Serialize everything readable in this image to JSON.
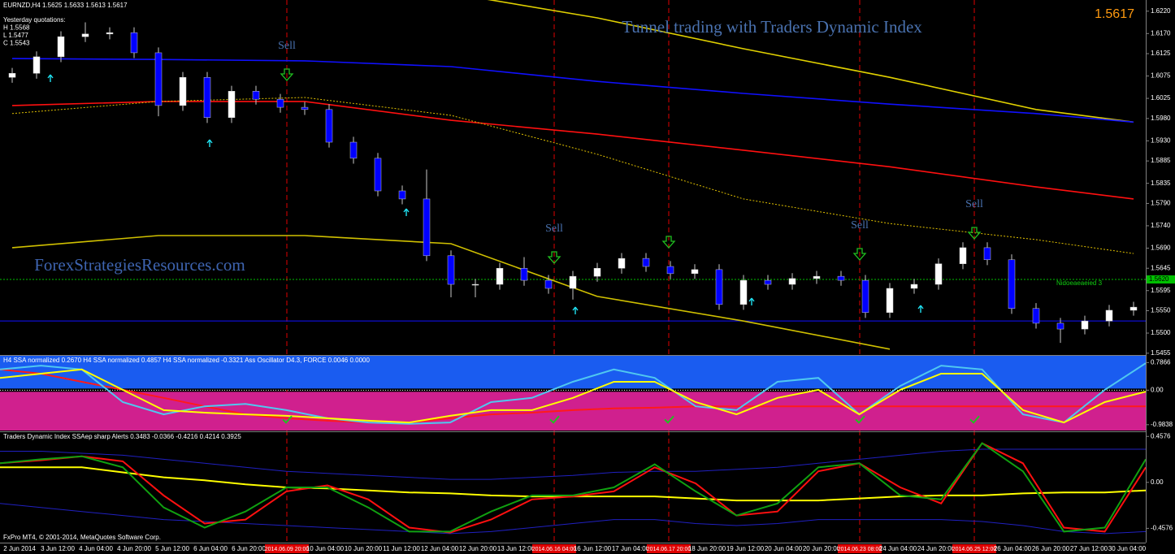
{
  "chart_data": [
    {
      "type": "candlestick",
      "symbol_line": "EURNZD,H4  1.5625 1.5633 1.5613 1.5617",
      "yesterday": [
        "Yesterday quotations:",
        "H 1.5568",
        "L 1.5477",
        "C 1.5543"
      ],
      "title": "Tunnel trading  with Traders Dynamic Index",
      "last_price": "1.5617",
      "watermark": "ForexStrategiesResources.com",
      "side_note": "Nidoeaeaeied 3",
      "bull_color": "#ffffff",
      "bear_color": "#0000ff",
      "open": [
        1.6072,
        1.6081,
        1.6118,
        1.6163,
        1.6169,
        1.6172,
        1.6127,
        1.6009,
        1.6072,
        1.5982,
        1.6041,
        1.6023,
        1.6005,
        1.6,
        1.5927,
        1.5891,
        1.5818,
        1.58,
        1.5673,
        1.5609,
        1.5609,
        1.5645,
        1.5618,
        1.56,
        1.5627,
        1.5645,
        1.5667,
        1.5649,
        1.5633,
        1.5642,
        1.5564,
        1.5618,
        1.5609,
        1.5622,
        1.5627,
        1.5618,
        1.5546,
        1.56,
        1.5609,
        1.5655,
        1.5691,
        1.5664,
        1.5555,
        1.5522,
        1.5509,
        1.5527,
        1.5551
      ],
      "high": [
        1.6093,
        1.613,
        1.6175,
        1.6195,
        1.6184,
        1.6184,
        1.6139,
        1.6084,
        1.6084,
        1.6053,
        1.6053,
        1.6035,
        1.6017,
        1.6012,
        1.5939,
        1.5903,
        1.583,
        1.5866,
        1.5685,
        1.5621,
        1.5657,
        1.567,
        1.563,
        1.5639,
        1.5657,
        1.5679,
        1.5679,
        1.5661,
        1.5654,
        1.5654,
        1.563,
        1.563,
        1.5634,
        1.5639,
        1.5639,
        1.563,
        1.5612,
        1.5621,
        1.5667,
        1.5703,
        1.5703,
        1.5676,
        1.5567,
        1.5534,
        1.5539,
        1.5563,
        1.557
      ],
      "low": [
        1.606,
        1.6069,
        1.6106,
        1.6151,
        1.6157,
        1.6115,
        1.5985,
        1.5997,
        1.597,
        1.597,
        1.6011,
        1.5993,
        1.5988,
        1.5915,
        1.5879,
        1.5806,
        1.5788,
        1.5661,
        1.558,
        1.558,
        1.5597,
        1.5606,
        1.5588,
        1.5575,
        1.5615,
        1.5633,
        1.5637,
        1.5621,
        1.5621,
        1.5552,
        1.5552,
        1.5597,
        1.5597,
        1.561,
        1.5606,
        1.5534,
        1.5534,
        1.5588,
        1.5597,
        1.5643,
        1.5652,
        1.5543,
        1.551,
        1.5478,
        1.5497,
        1.5515,
        1.5539
      ],
      "close": [
        1.6081,
        1.6118,
        1.6163,
        1.6169,
        1.6172,
        1.6127,
        1.6009,
        1.6072,
        1.5982,
        1.6041,
        1.6023,
        1.6005,
        1.6,
        1.5927,
        1.5891,
        1.5818,
        1.58,
        1.5673,
        1.5609,
        1.5609,
        1.5645,
        1.5618,
        1.56,
        1.5627,
        1.5645,
        1.5667,
        1.5649,
        1.5633,
        1.5642,
        1.5564,
        1.5618,
        1.5609,
        1.5622,
        1.5627,
        1.5618,
        1.5546,
        1.56,
        1.5609,
        1.5655,
        1.5691,
        1.5664,
        1.5555,
        1.5522,
        1.5509,
        1.5527,
        1.5551,
        1.5558
      ],
      "lines": [
        {
          "color": "#e0d000",
          "x": [
            0,
            6,
            12,
            18,
            24,
            30,
            36,
            42,
            46
          ],
          "values": [
            null,
            null,
            null,
            1.626,
            1.6205,
            1.6136,
            1.6072,
            1.6,
            1.5972
          ]
        },
        {
          "color": "#1010ff",
          "x": [
            0,
            6,
            12,
            18,
            24,
            30,
            36,
            42,
            46
          ],
          "values": [
            1.6114,
            1.6112,
            1.6109,
            1.6096,
            1.6063,
            1.6036,
            1.6012,
            1.5991,
            1.5972
          ]
        },
        {
          "color": "#ff1010",
          "x": [
            0,
            6,
            12,
            18,
            24,
            30,
            36,
            42,
            46
          ],
          "values": [
            1.6009,
            1.6018,
            1.6018,
            1.5976,
            1.5945,
            1.5909,
            1.5872,
            1.5827,
            1.58
          ]
        },
        {
          "color": "#e0c000",
          "style": "dotted",
          "x": [
            0,
            6,
            12,
            18,
            24,
            30,
            36,
            42,
            46
          ],
          "values": [
            1.5991,
            1.6018,
            1.6027,
            1.5987,
            1.59,
            1.58,
            1.5745,
            1.5709,
            1.5678
          ]
        },
        {
          "color": "#d0c000",
          "x": [
            0,
            6,
            12,
            18,
            24,
            30,
            36,
            42,
            46
          ],
          "values": [
            1.5691,
            1.5718,
            1.5718,
            1.57,
            1.5582,
            1.5527,
            1.5464,
            null,
            null
          ]
        }
      ],
      "hlines": [
        {
          "value": 1.562,
          "label": "1.5620",
          "color": "#00c000",
          "style": "dotted"
        },
        {
          "value": 1.5527,
          "color": "#1010ff"
        }
      ],
      "ylim": [
        1.5451,
        1.6245
      ],
      "yticks": [
        {
          "value": 1.622,
          "label": "1.6220"
        },
        {
          "value": 1.617,
          "label": "1.6170"
        },
        1.6125,
        1.6075,
        1.6025,
        {
          "value": 1.598,
          "label": "1.5980"
        },
        {
          "value": 1.593,
          "label": "1.5930"
        },
        1.5885,
        1.5835,
        {
          "value": 1.579,
          "label": "1.5790"
        },
        {
          "value": 1.574,
          "label": "1.5740"
        },
        {
          "value": 1.569,
          "label": "1.5690"
        },
        1.5645,
        1.5595,
        {
          "value": 1.555,
          "label": "1.5550"
        },
        {
          "value": 1.55,
          "label": "1.5500"
        },
        1.5455
      ],
      "time_labels": [
        "2 Jun 2014",
        "3 Jun 12:00",
        "4 Jun 04:00",
        "4 Jun 20:00",
        "5 Jun 12:00",
        "6 Jun 04:00",
        "6 Jun 20:00",
        {
          "label": "2014.06.09 20:00",
          "highlight": true,
          "signal": "Sell"
        },
        "10 Jun 04:00",
        "10 Jun 20:00",
        "11 Jun 12:00",
        "12 Jun 04:00",
        "12 Jun 20:00",
        "13 Jun 12:00",
        {
          "label": "2014.06.16 04:00",
          "highlight": true,
          "signal": "Sell"
        },
        "16 Jun 12:00",
        "17 Jun 04:00",
        {
          "label": "2014.06.17 20:00",
          "highlight": true
        },
        "18 Jun 20:00",
        "19 Jun 12:00",
        "20 Jun 04:00",
        "20 Jun 20:00",
        {
          "label": "2014.06.23 08:00",
          "highlight": true,
          "signal": "Sell"
        },
        "24 Jun 04:00",
        "24 Jun 20:00",
        {
          "label": "2014.06.25 12:00",
          "highlight": true,
          "signal": "Sell"
        },
        "26 Jun 04:00",
        "26 Jun 20:00",
        "27 Jun 12:00",
        "30 Jun 04:00"
      ]
    },
    {
      "type": "oscillator",
      "title": "H4 SSA normalized 0.2670  H4 SSA normalized 0.4857  H4 SSA normalized -0.3321  Ass Oscillator D4.3, FORCE  0.0046 0.0000",
      "upper_color": "#1a5cf0",
      "lower_color": "#d0208e",
      "series": [
        {
          "color": "#ff1a1a",
          "values": [
            0.59,
            0.47,
            0.24,
            0.01,
            -0.22,
            -0.46,
            -0.69,
            -0.8,
            -0.87,
            -0.92,
            -0.92,
            -0.8,
            -0.69,
            -0.64,
            -0.57,
            -0.52,
            -0.5,
            -0.46,
            -0.46,
            -0.46,
            -0.46,
            -0.46,
            -0.46,
            -0.46,
            -0.46,
            -0.46,
            -0.46,
            -0.46,
            -0.46
          ]
        },
        {
          "color": "#4fc8f0",
          "values": [
            0.59,
            0.7,
            0.59,
            -0.34,
            -0.69,
            -0.46,
            -0.39,
            -0.57,
            -0.8,
            -0.92,
            -0.96,
            -0.92,
            -0.34,
            -0.22,
            0.24,
            0.59,
            0.35,
            -0.46,
            -0.57,
            0.24,
            0.35,
            -0.69,
            0.12,
            0.7,
            0.59,
            -0.69,
            -0.92,
            0.01,
            0.77
          ]
        },
        {
          "color": "#ffff00",
          "values": [
            0.35,
            0.47,
            0.59,
            0.01,
            -0.57,
            -0.64,
            -0.69,
            -0.73,
            -0.8,
            -0.87,
            -0.92,
            -0.73,
            -0.57,
            -0.57,
            -0.22,
            0.24,
            0.24,
            -0.34,
            -0.69,
            -0.22,
            0.01,
            -0.69,
            0.01,
            0.47,
            0.47,
            -0.57,
            -0.92,
            -0.34,
            -0.04
          ]
        }
      ],
      "ylim": [
        -1.15,
        0.98
      ],
      "yticks": [
        0.7866,
        {
          "value": 0,
          "label": "0.00"
        },
        -0.9838
      ]
    },
    {
      "type": "oscillator",
      "title": "Traders Dynamic Index SSAep sharp Alerts  0.3483 -0.0366 -0.4216 0.4214 0.3925",
      "footer": "FxPro MT4, © 2001-2014, MetaQuotes Software Corp.",
      "series": [
        {
          "color": "#2020c0",
          "values": [
            0.31,
            0.31,
            0.29,
            0.27,
            0.23,
            0.19,
            0.15,
            0.11,
            0.09,
            0.07,
            0.05,
            0.03,
            0.03,
            0.05,
            0.07,
            0.1,
            0.11,
            0.11,
            0.13,
            0.15,
            0.19,
            0.23,
            0.27,
            0.31,
            0.33,
            0.33,
            0.33,
            0.33,
            0.33
          ]
        },
        {
          "color": "#2020c0",
          "values": [
            -0.21,
            -0.25,
            -0.29,
            -0.33,
            -0.37,
            -0.39,
            -0.41,
            -0.43,
            -0.45,
            -0.47,
            -0.49,
            -0.51,
            -0.49,
            -0.45,
            -0.41,
            -0.37,
            -0.37,
            -0.41,
            -0.43,
            -0.41,
            -0.37,
            -0.37,
            -0.37,
            -0.37,
            -0.39,
            -0.43,
            -0.49,
            -0.51,
            -0.49
          ]
        },
        {
          "color": "#ffff00",
          "values": [
            0.15,
            0.15,
            0.15,
            0.1,
            0.05,
            0.02,
            -0.02,
            -0.05,
            -0.06,
            -0.08,
            -0.1,
            -0.11,
            -0.13,
            -0.14,
            -0.14,
            -0.14,
            -0.14,
            -0.16,
            -0.18,
            -0.18,
            -0.18,
            -0.16,
            -0.14,
            -0.13,
            -0.13,
            -0.11,
            -0.1,
            -0.1,
            -0.08
          ]
        },
        {
          "color": "#ff1010",
          "values": [
            0.19,
            0.22,
            0.26,
            0.21,
            -0.13,
            -0.41,
            -0.37,
            -0.09,
            -0.03,
            -0.17,
            -0.45,
            -0.5,
            -0.37,
            -0.17,
            -0.14,
            -0.09,
            0.15,
            -0.01,
            -0.33,
            -0.29,
            0.11,
            0.19,
            -0.05,
            -0.21,
            0.39,
            0.19,
            -0.45,
            -0.49,
            0.15
          ]
        },
        {
          "color": "#10a010",
          "values": [
            0.19,
            0.23,
            0.26,
            0.15,
            -0.25,
            -0.45,
            -0.29,
            -0.05,
            -0.05,
            -0.25,
            -0.49,
            -0.49,
            -0.29,
            -0.13,
            -0.13,
            -0.05,
            0.18,
            -0.09,
            -0.33,
            -0.21,
            0.15,
            0.19,
            -0.13,
            -0.17,
            0.39,
            0.11,
            -0.49,
            -0.45,
            0.23
          ]
        }
      ],
      "ylim": [
        -0.6,
        0.5
      ],
      "yticks": [
        0.4576,
        {
          "value": 0,
          "label": "0.00"
        },
        -0.4576
      ]
    }
  ]
}
